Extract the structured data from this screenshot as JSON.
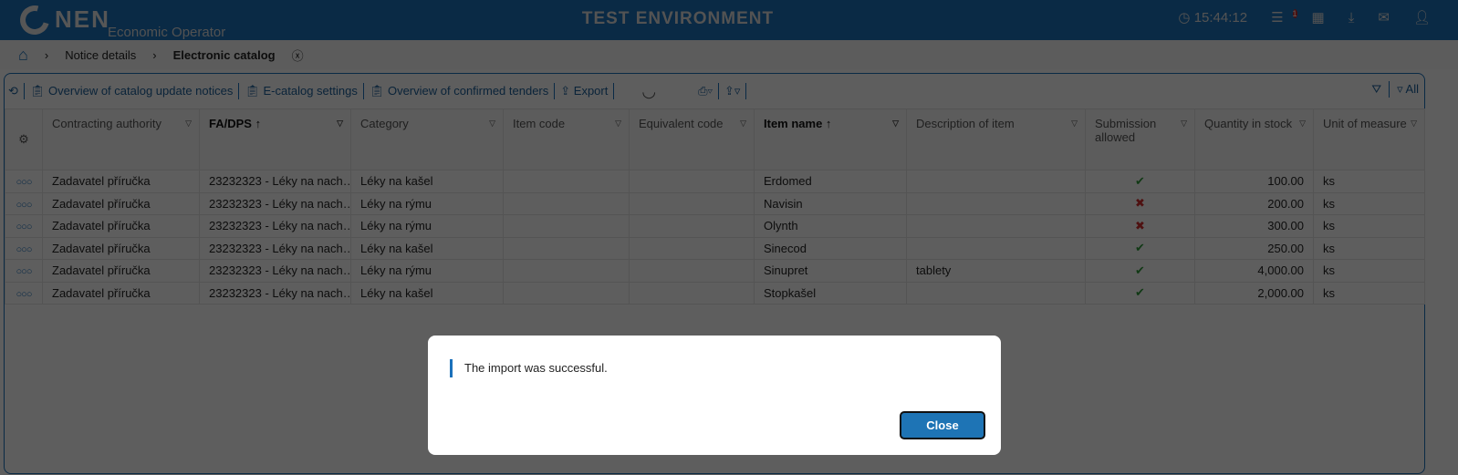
{
  "header": {
    "logo": "NEN",
    "subtitle": "Economic Operator",
    "environment": "TEST ENVIRONMENT",
    "time": "15:44:12",
    "menu_badge": "1"
  },
  "breadcrumb": [
    "Notice details",
    "Electronic catalog"
  ],
  "toolbar": {
    "items": [
      "Overview of catalog update notices",
      "E-catalog settings",
      "Overview of confirmed tenders",
      "Export"
    ],
    "filter_all": "All"
  },
  "table": {
    "columns": [
      "Contracting authority",
      "FA/DPS",
      "Category",
      "Item code",
      "Equivalent code",
      "Item name",
      "Description of item",
      "Submission allowed",
      "Quantity in stock",
      "Unit of measure"
    ],
    "sorted": [
      "FA/DPS",
      "Item name"
    ],
    "rows": [
      [
        "Zadavatel příručka",
        "23232323 - Léky na nach…",
        "Léky na kašel",
        "",
        "",
        "Erdomed",
        "",
        "yes",
        "100.00",
        "ks"
      ],
      [
        "Zadavatel příručka",
        "23232323 - Léky na nach…",
        "Léky na rýmu",
        "",
        "",
        "Navisin",
        "",
        "no",
        "200.00",
        "ks"
      ],
      [
        "Zadavatel příručka",
        "23232323 - Léky na nach…",
        "Léky na rýmu",
        "",
        "",
        "Olynth",
        "",
        "no",
        "300.00",
        "ks"
      ],
      [
        "Zadavatel příručka",
        "23232323 - Léky na nach…",
        "Léky na kašel",
        "",
        "",
        "Sinecod",
        "",
        "yes",
        "250.00",
        "ks"
      ],
      [
        "Zadavatel příručka",
        "23232323 - Léky na nach…",
        "Léky na rýmu",
        "",
        "",
        "Sinupret",
        "tablety",
        "yes",
        "4,000.00",
        "ks"
      ],
      [
        "Zadavatel příručka",
        "23232323 - Léky na nach…",
        "Léky na kašel",
        "",
        "",
        "Stopkašel",
        "",
        "yes",
        "2,000.00",
        "ks"
      ]
    ]
  },
  "modal": {
    "message": "The import was successful.",
    "close_label": "Close"
  }
}
